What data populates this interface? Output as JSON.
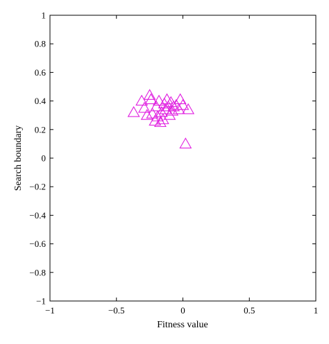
{
  "chart_data": {
    "type": "scatter",
    "title": "",
    "xlabel": "Fitness value",
    "ylabel": "Search boundary",
    "xlim": [
      -1,
      1
    ],
    "ylim": [
      -1,
      1
    ],
    "xticks": [
      -1,
      -0.5,
      0,
      0.5,
      1
    ],
    "xtick_labels": [
      "−1",
      "−0.5",
      "0",
      "0.5",
      "1"
    ],
    "yticks": [
      -1,
      -0.8,
      -0.6,
      -0.4,
      -0.2,
      0,
      0.2,
      0.4,
      0.6,
      0.8,
      1
    ],
    "ytick_labels": [
      "−1",
      "−0.8",
      "−0.6",
      "−0.4",
      "−0.2",
      "0",
      "0.2",
      "0.4",
      "0.6",
      "0.8",
      "1"
    ],
    "grid": false,
    "legend": "none",
    "marker": "triangle-open",
    "marker_color": "#e020e0",
    "series": [
      {
        "x": [
          -0.37,
          -0.31,
          -0.29,
          -0.27,
          -0.25,
          -0.24,
          -0.23,
          -0.21,
          -0.2,
          -0.19,
          -0.18,
          -0.17,
          -0.16,
          -0.15,
          -0.14,
          -0.13,
          -0.12,
          -0.11,
          -0.1,
          -0.09,
          -0.08,
          -0.07,
          -0.05,
          -0.03,
          -0.02,
          0.0,
          0.04,
          0.02
        ],
        "y": [
          0.32,
          0.4,
          0.35,
          0.3,
          0.44,
          0.41,
          0.31,
          0.26,
          0.36,
          0.29,
          0.4,
          0.25,
          0.32,
          0.27,
          0.38,
          0.34,
          0.41,
          0.36,
          0.3,
          0.39,
          0.33,
          0.36,
          0.37,
          0.34,
          0.41,
          0.37,
          0.34,
          0.1
        ]
      }
    ]
  }
}
